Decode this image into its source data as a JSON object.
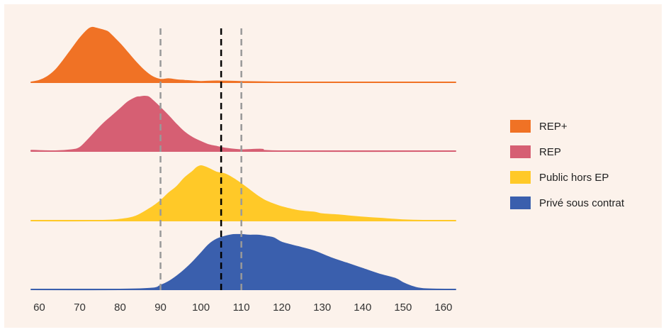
{
  "chart_data": {
    "type": "area",
    "subtype": "ridgeline-density",
    "title": "",
    "xlabel": "",
    "ylabel": "",
    "xlim": [
      58,
      163
    ],
    "x_ticks": [
      60,
      70,
      80,
      90,
      100,
      110,
      120,
      130,
      140,
      150,
      160
    ],
    "grid": false,
    "legend_position": "right",
    "reference_lines": [
      {
        "x": 90,
        "color": "#999999",
        "style": "dashed"
      },
      {
        "x": 105,
        "color": "#000000",
        "style": "dashed"
      },
      {
        "x": 110,
        "color": "#999999",
        "style": "dashed"
      }
    ],
    "series": [
      {
        "name": "REP+",
        "color": "#f07225",
        "x": [
          58,
          60,
          62,
          64,
          66,
          68,
          70,
          72,
          73,
          74,
          75,
          76,
          77,
          78,
          80,
          82,
          84,
          86,
          88,
          90,
          92,
          94,
          96,
          98,
          100,
          104,
          110,
          120,
          140,
          163
        ],
        "density": [
          0.0,
          0.03,
          0.1,
          0.22,
          0.4,
          0.6,
          0.8,
          0.96,
          1.0,
          0.99,
          0.97,
          0.95,
          0.92,
          0.85,
          0.7,
          0.53,
          0.36,
          0.21,
          0.1,
          0.05,
          0.06,
          0.04,
          0.03,
          0.02,
          0.01,
          0.02,
          0.01,
          0.0,
          0.0,
          0.0
        ]
      },
      {
        "name": "REP",
        "color": "#d65f73",
        "x": [
          58,
          64,
          68,
          70,
          72,
          74,
          76,
          78,
          80,
          82,
          84,
          85,
          86,
          87,
          88,
          90,
          92,
          94,
          96,
          98,
          100,
          102,
          104,
          106,
          110,
          115,
          120,
          163
        ],
        "density": [
          0.01,
          0.0,
          0.02,
          0.06,
          0.2,
          0.36,
          0.51,
          0.64,
          0.77,
          0.9,
          0.98,
          0.99,
          1.0,
          0.99,
          0.93,
          0.79,
          0.64,
          0.48,
          0.34,
          0.24,
          0.17,
          0.11,
          0.08,
          0.05,
          0.02,
          0.03,
          0.0,
          0.0
        ]
      },
      {
        "name": "Public hors EP",
        "color": "#ffc928",
        "x": [
          58,
          75,
          80,
          84,
          88,
          90,
          92,
          94,
          96,
          98,
          99,
          100,
          101,
          102,
          104,
          106,
          108,
          110,
          112,
          114,
          116,
          118,
          120,
          124,
          128,
          130,
          134,
          140,
          146,
          150,
          155,
          163
        ],
        "density": [
          0.0,
          0.0,
          0.02,
          0.08,
          0.25,
          0.36,
          0.5,
          0.62,
          0.78,
          0.9,
          0.97,
          1.0,
          0.98,
          0.95,
          0.88,
          0.85,
          0.77,
          0.67,
          0.56,
          0.45,
          0.36,
          0.3,
          0.25,
          0.18,
          0.15,
          0.12,
          0.1,
          0.06,
          0.03,
          0.01,
          0.0,
          0.0
        ]
      },
      {
        "name": "Privé sous contrat",
        "color": "#3a5fad",
        "x": [
          58,
          80,
          88,
          90,
          92,
          94,
          96,
          98,
          100,
          102,
          104,
          106,
          108,
          110,
          112,
          114,
          116,
          118,
          120,
          124,
          128,
          132,
          136,
          140,
          144,
          148,
          150,
          152,
          155,
          163
        ],
        "density": [
          0.0,
          0.0,
          0.02,
          0.07,
          0.14,
          0.24,
          0.36,
          0.5,
          0.66,
          0.82,
          0.92,
          0.97,
          1.0,
          1.0,
          0.99,
          0.99,
          0.97,
          0.94,
          0.86,
          0.78,
          0.7,
          0.58,
          0.48,
          0.38,
          0.28,
          0.2,
          0.12,
          0.06,
          0.01,
          0.0
        ]
      }
    ]
  }
}
